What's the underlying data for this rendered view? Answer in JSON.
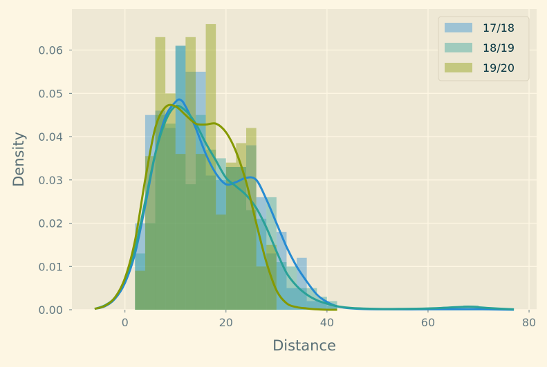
{
  "chart_data": {
    "type": "histogram",
    "xlabel": "Distance",
    "ylabel": "Density",
    "xlim": [
      -10.5,
      81.5
    ],
    "ylim": [
      0,
      0.0695
    ],
    "x_ticks": [
      0,
      20,
      40,
      60,
      80
    ],
    "y_ticks": [
      0.0,
      0.01,
      0.02,
      0.03,
      0.04,
      0.05,
      0.06
    ],
    "y_tick_labels": [
      "0.00",
      "0.01",
      "0.02",
      "0.03",
      "0.04",
      "0.05",
      "0.06"
    ],
    "grid": true,
    "legend_position": "top-right",
    "series": [
      {
        "name": "17/18",
        "color": "#268bd2",
        "bin_edges": [
          2,
          4,
          6,
          8,
          10,
          12,
          14,
          16,
          18,
          20,
          22,
          24,
          26,
          28,
          30,
          32,
          34,
          36,
          38,
          40,
          42
        ],
        "density": [
          0.02,
          0.045,
          0.046,
          0.042,
          0.061,
          0.055,
          0.055,
          0.031,
          0.03,
          0.033,
          0.033,
          0.038,
          0.026,
          0.013,
          0.018,
          0.005,
          0.012,
          0.002,
          0.002,
          0.001
        ],
        "kde_x": [
          -6,
          -4,
          -2,
          0,
          2,
          4,
          6,
          8,
          10,
          11,
          12,
          14,
          16,
          18,
          20,
          22,
          24,
          26,
          28,
          30,
          32,
          34,
          36,
          38,
          40,
          42,
          45,
          50,
          60,
          70,
          77
        ],
        "kde_y": [
          0.0002,
          0.0008,
          0.0025,
          0.0062,
          0.013,
          0.024,
          0.036,
          0.0445,
          0.048,
          0.0485,
          0.047,
          0.042,
          0.036,
          0.0315,
          0.029,
          0.0295,
          0.0305,
          0.03,
          0.0255,
          0.02,
          0.0145,
          0.01,
          0.0065,
          0.0035,
          0.0018,
          0.0008,
          0.0003,
          0.0001,
          0.0001,
          0.0001,
          0.0
        ]
      },
      {
        "name": "18/19",
        "color": "#2aa198",
        "bin_edges": [
          2,
          4,
          6,
          8,
          10,
          12,
          14,
          16,
          18,
          20,
          22,
          24,
          26,
          28,
          30,
          32,
          34,
          36,
          38,
          40,
          42,
          65,
          66,
          67,
          68,
          69,
          70,
          71
        ],
        "density": [
          0.013,
          0.02,
          0.045,
          0.043,
          0.061,
          0.029,
          0.045,
          0.037,
          0.035,
          0.033,
          0.033,
          0.023,
          0.021,
          0.026,
          0.011,
          0.01,
          0.005,
          0.005,
          0.003,
          0.002,
          0.0,
          0.0008,
          0.0008,
          0.001,
          0.001,
          0.001,
          0.0005
        ],
        "kde_x": [
          -6,
          -4,
          -2,
          0,
          2,
          4,
          6,
          8,
          10,
          12,
          14,
          16,
          18,
          20,
          22,
          24,
          26,
          28,
          30,
          32,
          34,
          36,
          38,
          40,
          42,
          45,
          50,
          55,
          60,
          64,
          68,
          72,
          77
        ],
        "kde_y": [
          0.0002,
          0.001,
          0.0028,
          0.007,
          0.014,
          0.025,
          0.036,
          0.0435,
          0.047,
          0.046,
          0.043,
          0.0385,
          0.0345,
          0.0305,
          0.0285,
          0.0265,
          0.0235,
          0.019,
          0.0135,
          0.0085,
          0.0055,
          0.0035,
          0.0022,
          0.0014,
          0.0008,
          0.0004,
          0.0002,
          0.0002,
          0.0003,
          0.0005,
          0.0007,
          0.0004,
          0.0001
        ]
      },
      {
        "name": "19/20",
        "color": "#859900",
        "bin_edges": [
          2,
          4,
          6,
          8,
          10,
          12,
          14,
          16,
          18,
          20,
          22,
          24,
          26,
          28,
          30
        ],
        "density": [
          0.009,
          0.0355,
          0.063,
          0.05,
          0.036,
          0.063,
          0.036,
          0.066,
          0.022,
          0.034,
          0.0385,
          0.042,
          0.01,
          0.015
        ],
        "kde_x": [
          -6,
          -4,
          -2,
          0,
          2,
          4,
          6,
          8,
          10,
          12,
          14,
          16,
          18,
          20,
          22,
          24,
          26,
          28,
          30,
          32,
          34,
          36,
          38,
          40,
          42
        ],
        "kde_y": [
          0.0002,
          0.0009,
          0.0028,
          0.0073,
          0.016,
          0.03,
          0.042,
          0.0468,
          0.047,
          0.045,
          0.043,
          0.0428,
          0.043,
          0.041,
          0.0365,
          0.0295,
          0.02,
          0.011,
          0.0045,
          0.0015,
          0.0006,
          0.0003,
          0.0001,
          0.0,
          0.0
        ]
      }
    ]
  }
}
